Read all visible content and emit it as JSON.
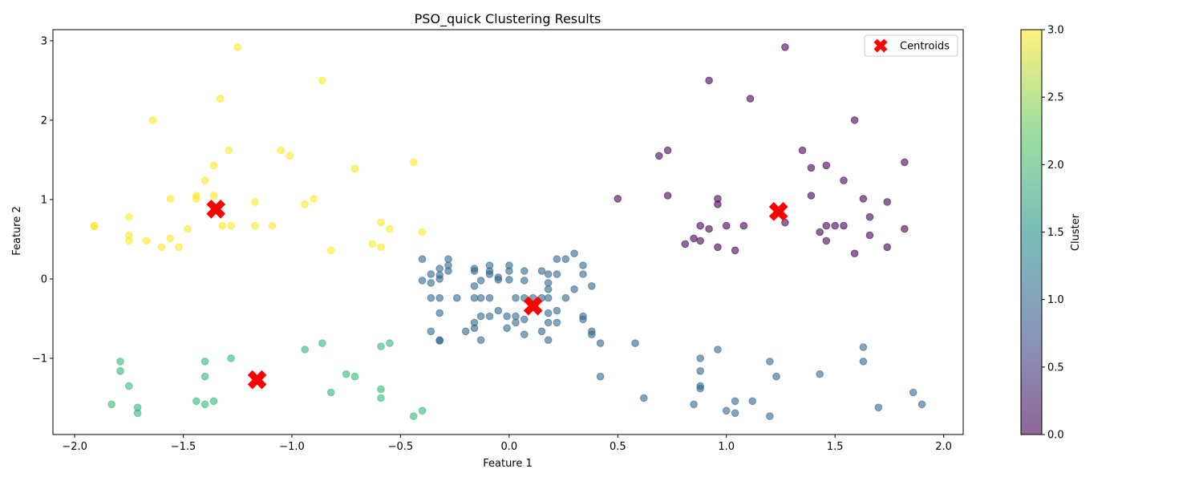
{
  "chart_data": {
    "type": "scatter",
    "title": "PSO_quick Clustering Results",
    "xlabel": "Feature 1",
    "ylabel": "Feature 2",
    "xlim": [
      -2.1,
      2.09
    ],
    "ylim": [
      -1.96,
      3.14
    ],
    "x_ticks": [
      -2.0,
      -1.5,
      -1.0,
      -0.5,
      0.0,
      0.5,
      1.0,
      1.5,
      2.0
    ],
    "x_tick_labels": [
      "−2.0",
      "−1.5",
      "−1.0",
      "−0.5",
      "0.0",
      "0.5",
      "1.0",
      "1.5",
      "2.0"
    ],
    "y_ticks": [
      -1,
      0,
      1,
      2,
      3
    ],
    "y_tick_labels": [
      "−1",
      "0",
      "1",
      "2",
      "3"
    ],
    "grid": false,
    "legend": {
      "placement": "top-right",
      "entries": [
        "Centroids"
      ]
    },
    "colorbar": {
      "label": "Cluster",
      "range": [
        0.0,
        3.0
      ],
      "ticks": [
        0.0,
        0.5,
        1.0,
        1.5,
        2.0,
        2.5,
        3.0
      ],
      "tick_labels": [
        "0.0",
        "0.5",
        "1.0",
        "1.5",
        "2.0",
        "2.5",
        "3.0"
      ],
      "colormap": [
        "#440154",
        "#3b528b",
        "#21918c",
        "#5ec962",
        "#fde725"
      ]
    },
    "cluster_colors": {
      "0": "#440154",
      "1": "#31688e",
      "2": "#35b779",
      "3": "#fde725"
    },
    "centroid_color": "#ff0000",
    "series": [
      {
        "cluster": 0,
        "points": [
          [
            1.27,
            2.92
          ],
          [
            0.92,
            2.5
          ],
          [
            1.11,
            2.27
          ],
          [
            1.59,
            2.0
          ],
          [
            0.73,
            1.62
          ],
          [
            0.69,
            1.55
          ],
          [
            1.35,
            1.62
          ],
          [
            1.39,
            1.4
          ],
          [
            1.46,
            1.43
          ],
          [
            1.82,
            1.47
          ],
          [
            1.54,
            1.24
          ],
          [
            0.5,
            1.01
          ],
          [
            0.73,
            1.05
          ],
          [
            0.96,
            1.01
          ],
          [
            0.96,
            0.94
          ],
          [
            1.39,
            1.05
          ],
          [
            1.63,
            1.01
          ],
          [
            1.74,
            0.97
          ],
          [
            1.66,
            0.78
          ],
          [
            0.88,
            0.67
          ],
          [
            1.0,
            0.67
          ],
          [
            1.08,
            0.67
          ],
          [
            0.92,
            0.63
          ],
          [
            1.27,
            0.71
          ],
          [
            1.46,
            0.67
          ],
          [
            1.5,
            0.67
          ],
          [
            1.54,
            0.67
          ],
          [
            1.43,
            0.59
          ],
          [
            1.66,
            0.55
          ],
          [
            1.82,
            0.63
          ],
          [
            0.81,
            0.44
          ],
          [
            0.85,
            0.51
          ],
          [
            0.88,
            0.48
          ],
          [
            0.96,
            0.4
          ],
          [
            1.04,
            0.36
          ],
          [
            1.46,
            0.48
          ],
          [
            1.59,
            0.32
          ],
          [
            1.74,
            0.4
          ]
        ]
      },
      {
        "cluster": 1,
        "points": [
          [
            -0.4,
            0.25
          ],
          [
            -0.28,
            0.25
          ],
          [
            -0.28,
            0.17
          ],
          [
            -0.32,
            0.13
          ],
          [
            -0.28,
            0.1
          ],
          [
            -0.32,
            0.05
          ],
          [
            -0.36,
            0.06
          ],
          [
            -0.32,
            0.0
          ],
          [
            -0.4,
            -0.02
          ],
          [
            -0.36,
            -0.05
          ],
          [
            -0.16,
            0.13
          ],
          [
            -0.16,
            0.1
          ],
          [
            -0.09,
            0.17
          ],
          [
            -0.09,
            0.1
          ],
          [
            -0.09,
            0.06
          ],
          [
            -0.05,
            0.02
          ],
          [
            -0.05,
            -0.01
          ],
          [
            0.0,
            0.17
          ],
          [
            0.0,
            0.1
          ],
          [
            0.0,
            -0.01
          ],
          [
            -0.13,
            -0.02
          ],
          [
            -0.16,
            -0.09
          ],
          [
            0.07,
            0.1
          ],
          [
            0.07,
            -0.02
          ],
          [
            0.15,
            0.1
          ],
          [
            0.18,
            0.06
          ],
          [
            0.22,
            0.25
          ],
          [
            0.26,
            0.25
          ],
          [
            0.3,
            0.32
          ],
          [
            0.22,
            0.06
          ],
          [
            0.34,
            0.17
          ],
          [
            0.34,
            0.06
          ],
          [
            0.18,
            -0.05
          ],
          [
            0.18,
            -0.13
          ],
          [
            0.3,
            -0.13
          ],
          [
            0.38,
            -0.09
          ],
          [
            -0.36,
            -0.24
          ],
          [
            -0.32,
            -0.24
          ],
          [
            -0.24,
            -0.24
          ],
          [
            -0.16,
            -0.24
          ],
          [
            -0.13,
            -0.24
          ],
          [
            -0.09,
            -0.24
          ],
          [
            0.03,
            -0.24
          ],
          [
            0.07,
            -0.24
          ],
          [
            0.11,
            -0.24
          ],
          [
            0.15,
            -0.24
          ],
          [
            0.18,
            -0.24
          ],
          [
            0.26,
            -0.24
          ],
          [
            -0.32,
            -0.43
          ],
          [
            -0.13,
            -0.47
          ],
          [
            -0.09,
            -0.47
          ],
          [
            -0.05,
            -0.4
          ],
          [
            -0.01,
            -0.47
          ],
          [
            0.03,
            -0.47
          ],
          [
            0.03,
            -0.55
          ],
          [
            0.07,
            -0.51
          ],
          [
            0.18,
            -0.43
          ],
          [
            0.22,
            -0.4
          ],
          [
            0.34,
            -0.47
          ],
          [
            0.34,
            -0.51
          ],
          [
            -0.16,
            -0.55
          ],
          [
            -0.16,
            -0.62
          ],
          [
            -0.01,
            -0.62
          ],
          [
            -0.36,
            -0.66
          ],
          [
            -0.2,
            -0.66
          ],
          [
            0.07,
            -0.7
          ],
          [
            0.15,
            -0.66
          ],
          [
            0.18,
            -0.55
          ],
          [
            0.22,
            -0.55
          ],
          [
            0.38,
            -0.66
          ],
          [
            0.38,
            -0.7
          ],
          [
            -0.32,
            -0.77
          ],
          [
            -0.32,
            -0.78
          ],
          [
            -0.13,
            -0.77
          ],
          [
            0.18,
            -0.77
          ],
          [
            0.42,
            -0.81
          ],
          [
            0.58,
            -0.81
          ],
          [
            0.42,
            -1.23
          ],
          [
            0.62,
            -1.5
          ],
          [
            0.85,
            -1.58
          ],
          [
            0.88,
            -1.0
          ],
          [
            0.88,
            -1.16
          ],
          [
            0.96,
            -0.89
          ],
          [
            0.88,
            -1.35
          ],
          [
            0.88,
            -1.38
          ],
          [
            1.0,
            -1.66
          ],
          [
            1.04,
            -1.54
          ],
          [
            1.04,
            -1.69
          ],
          [
            1.12,
            -1.54
          ],
          [
            1.2,
            -1.04
          ],
          [
            1.23,
            -1.23
          ],
          [
            1.2,
            -1.73
          ],
          [
            1.43,
            -1.2
          ],
          [
            1.63,
            -0.86
          ],
          [
            1.63,
            -1.04
          ],
          [
            1.7,
            -1.62
          ],
          [
            1.86,
            -1.43
          ],
          [
            1.9,
            -1.58
          ]
        ]
      },
      {
        "cluster": 2,
        "points": [
          [
            -1.79,
            -1.04
          ],
          [
            -1.79,
            -1.16
          ],
          [
            -1.75,
            -1.35
          ],
          [
            -1.83,
            -1.58
          ],
          [
            -1.71,
            -1.62
          ],
          [
            -1.71,
            -1.69
          ],
          [
            -1.4,
            -1.04
          ],
          [
            -1.4,
            -1.23
          ],
          [
            -1.44,
            -1.54
          ],
          [
            -1.4,
            -1.58
          ],
          [
            -1.36,
            -1.54
          ],
          [
            -1.28,
            -1.0
          ],
          [
            -0.94,
            -0.89
          ],
          [
            -0.86,
            -0.81
          ],
          [
            -0.82,
            -1.43
          ],
          [
            -0.75,
            -1.2
          ],
          [
            -0.71,
            -1.23
          ],
          [
            -0.59,
            -0.85
          ],
          [
            -0.55,
            -0.81
          ],
          [
            -0.59,
            -1.39
          ],
          [
            -0.59,
            -1.5
          ],
          [
            -0.44,
            -1.73
          ],
          [
            -0.4,
            -1.66
          ]
        ]
      },
      {
        "cluster": 3,
        "points": [
          [
            -1.25,
            2.92
          ],
          [
            -0.86,
            2.5
          ],
          [
            -1.33,
            2.27
          ],
          [
            -1.64,
            2.0
          ],
          [
            -1.29,
            1.62
          ],
          [
            -1.05,
            1.62
          ],
          [
            -1.01,
            1.55
          ],
          [
            -1.36,
            1.43
          ],
          [
            -0.71,
            1.39
          ],
          [
            -0.44,
            1.47
          ],
          [
            -1.4,
            1.24
          ],
          [
            -1.56,
            1.01
          ],
          [
            -1.44,
            1.05
          ],
          [
            -1.44,
            1.01
          ],
          [
            -1.36,
            1.05
          ],
          [
            -1.17,
            0.97
          ],
          [
            -0.94,
            0.94
          ],
          [
            -0.9,
            1.01
          ],
          [
            -1.91,
            0.67
          ],
          [
            -1.91,
            0.66
          ],
          [
            -1.75,
            0.78
          ],
          [
            -1.75,
            0.55
          ],
          [
            -1.75,
            0.48
          ],
          [
            -1.67,
            0.48
          ],
          [
            -1.48,
            0.63
          ],
          [
            -1.56,
            0.51
          ],
          [
            -1.6,
            0.4
          ],
          [
            -1.52,
            0.4
          ],
          [
            -1.32,
            0.67
          ],
          [
            -1.28,
            0.67
          ],
          [
            -1.17,
            0.67
          ],
          [
            -1.09,
            0.67
          ],
          [
            -0.59,
            0.71
          ],
          [
            -0.55,
            0.63
          ],
          [
            -0.4,
            0.59
          ],
          [
            -0.63,
            0.44
          ],
          [
            -0.59,
            0.4
          ],
          [
            -0.82,
            0.36
          ]
        ]
      }
    ],
    "centroids": [
      {
        "cluster": 0,
        "x": 1.24,
        "y": 0.85
      },
      {
        "cluster": 1,
        "x": 0.11,
        "y": -0.34
      },
      {
        "cluster": 2,
        "x": -1.16,
        "y": -1.27
      },
      {
        "cluster": 3,
        "x": -1.35,
        "y": 0.88
      }
    ]
  }
}
